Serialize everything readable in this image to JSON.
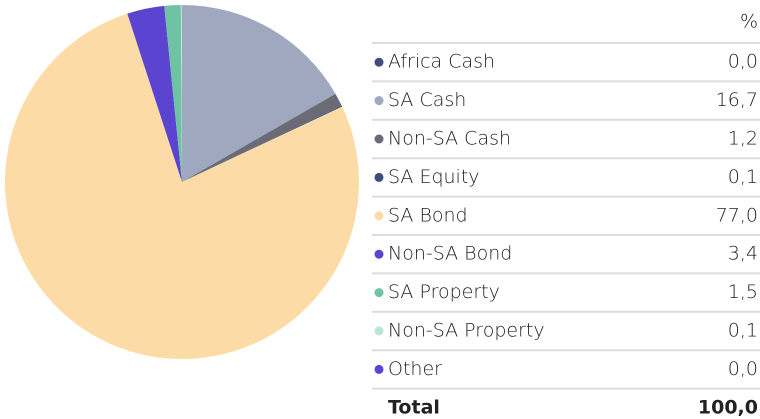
{
  "chart_data": {
    "type": "pie",
    "value_header": "%",
    "categories": [
      "Africa Cash",
      "SA Cash",
      "Non-SA Cash",
      "SA Equity",
      "SA Bond",
      "Non-SA Bond",
      "SA Property",
      "Non-SA Property",
      "Other"
    ],
    "values": [
      0,
      16.7,
      1.2,
      0.1,
      77,
      3.4,
      1.5,
      0.1,
      0
    ],
    "value_labels": [
      "0,0",
      "16,7",
      "1,2",
      "0,1",
      "77,0",
      "3,4",
      "1,5",
      "0,1",
      "0,0"
    ],
    "colors": [
      "#3f4f7a",
      "#a0a8c0",
      "#6b6b75",
      "#3d4d7a",
      "#fddba6",
      "#5b45d0",
      "#6fc3a4",
      "#b8e6d6",
      "#5b45d0"
    ],
    "total_label": "Total",
    "total_value_label": "100,0"
  }
}
